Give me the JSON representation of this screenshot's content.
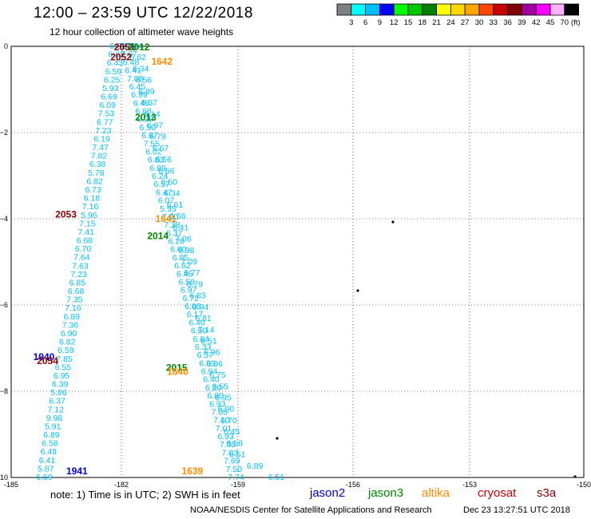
{
  "header": {
    "title": "12:00 – 23:59 UTC 12/22/2018",
    "subtitle": "12 hour collection of altimeter wave heights"
  },
  "color_scale": {
    "labels": [
      "3",
      "6",
      "9",
      "12",
      "15",
      "18",
      "21",
      "24",
      "27",
      "30",
      "33",
      "36",
      "39",
      "42",
      "45",
      "70"
    ],
    "unit": "(ft)",
    "colors": [
      "#7f7f7f",
      "#00ffff",
      "#00bfff",
      "#0000ff",
      "#00ff00",
      "#00c800",
      "#008000",
      "#ffff00",
      "#ffd700",
      "#ffa500",
      "#ff4500",
      "#c80000",
      "#800000",
      "#a000a0",
      "#ff00ff",
      "#ffb0ff",
      "#000000"
    ]
  },
  "legend": {
    "note": "note:  1) Time is in UTC;  2) SWH is in feet",
    "satellites": [
      {
        "name": "jason2",
        "color": "#0000cc"
      },
      {
        "name": "jason3",
        "color": "#008800"
      },
      {
        "name": "altika",
        "color": "#ff8c00"
      },
      {
        "name": "cryosat",
        "color": "#cc0000"
      },
      {
        "name": "s3a",
        "color": "#8b0000"
      }
    ]
  },
  "footer": {
    "credit": "NOAA/NESDIS Center for Satellite Applications and Research",
    "timestamp": "Dec 23 13:27:51 UTC 2018"
  },
  "chart_data": {
    "type": "scatter",
    "xlim": [
      -185,
      -150
    ],
    "ylim": [
      -10,
      0
    ],
    "x_ticks": [
      -185,
      -182,
      -159,
      -156,
      -153,
      -150
    ],
    "x_tick_labels": [
      "-185",
      "-182",
      "-159",
      "-156",
      "-153",
      "-150"
    ],
    "y_ticks": [
      0,
      -2,
      -4,
      -6,
      -8,
      -10
    ],
    "y_tick_labels": [
      "0",
      "−2",
      "−4",
      "−6",
      "−8",
      "−10"
    ],
    "grid": true,
    "value_color": "#00bfff",
    "tracks": [
      {
        "name": "track-a",
        "x_start": -182.1,
        "y_start": 0.0,
        "x_end": -184.1,
        "y_end": -10.0,
        "values": [
          "6.02",
          "6.63",
          "6.43",
          "6.59",
          "6.25",
          "5.93",
          "6.69",
          "6.09",
          "7.53",
          "6.77",
          "7.23",
          "6.19",
          "7.47",
          "7.82",
          "6.38",
          "5.78",
          "6.82",
          "6.73",
          "6.18",
          "7.16",
          "5.96",
          "7.15",
          "7.41",
          "6.68",
          "6.70",
          "7.64",
          "7.63",
          "7.23",
          "6.85",
          "6.68",
          "7.35",
          "7.16",
          "6.89",
          "7.36",
          "6.90",
          "6.82",
          "6.59",
          "7.85",
          "6.55",
          "6.95",
          "6.39",
          "5.86",
          "6.37",
          "7.12",
          "9.98",
          "5.91",
          "6.89",
          "6.58",
          "6.49",
          "6.41",
          "5.87",
          "6.69"
        ]
      },
      {
        "name": "track-b",
        "x_start": -180.9,
        "y_start": 0.0,
        "x_end": -159.4,
        "y_end": -10.0,
        "values": [
          "7.05",
          "7.07",
          "6.48",
          "6.41",
          "7.08",
          "6.45",
          "6.99",
          "6.49",
          "6.68",
          "6.29",
          "6.50",
          "6.67",
          "7.55",
          "6.02",
          "6.83",
          "6.89",
          "6.24",
          "6.57",
          "6.47",
          "6.07",
          "5.95",
          "7.00",
          "7.38",
          "6.37",
          "6.28",
          "6.60",
          "6.85",
          "6.62",
          "6.45",
          "6.58",
          "6.97",
          "6.72",
          "6.06",
          "6.17",
          "6.40",
          "6.50",
          "6.84",
          "6.33",
          "6.57",
          "6.39",
          "6.94",
          "6.40",
          "6.20",
          "6.80",
          "6.93",
          "7.05",
          "7.10",
          "7.01",
          "6.93",
          "7.65",
          "7.03",
          "7.69",
          "7.50",
          "7.74"
        ]
      },
      {
        "name": "track-c",
        "x_start": -179.3,
        "y_start": 0.0,
        "x_end": -158.0,
        "y_end": -10.0,
        "values": [
          "7.14",
          "6.62",
          "6.34",
          "6.56",
          "6.89",
          "6.37",
          "6.14",
          "6.97",
          "6.79",
          "6.67",
          "6.56",
          "6.66",
          "6.50",
          "6.34",
          "6.61",
          "6.66",
          "6.41",
          "7.06",
          "6.98",
          "7.09",
          "6.77",
          "6.79",
          "6.83",
          "6.94",
          "6.81",
          "7.14",
          "6.51",
          "6.96",
          "6.96",
          "6.75",
          "6.55",
          "6.95",
          "6.90",
          "6.70",
          "6.45",
          "6.58",
          "6.51",
          "6.89",
          "6.51"
        ]
      }
    ],
    "time_labels": [
      {
        "text": "2051",
        "x": -182.2,
        "y": -0.02,
        "color": "#8b0000"
      },
      {
        "text": "2052",
        "x": -182.3,
        "y": -0.25,
        "color": "#8b0000"
      },
      {
        "text": "2012",
        "x": -180.6,
        "y": -0.02,
        "color": "#008800"
      },
      {
        "text": "1642",
        "x": -176.1,
        "y": -0.35,
        "color": "#ff8c00"
      },
      {
        "text": "2013",
        "x": -179.3,
        "y": -1.65,
        "color": "#008800"
      },
      {
        "text": "2053",
        "x": -183.8,
        "y": -3.9,
        "color": "#8b0000"
      },
      {
        "text": "1641",
        "x": -175.3,
        "y": -4.0,
        "color": "#ff8c00"
      },
      {
        "text": "2014",
        "x": -176.9,
        "y": -4.4,
        "color": "#008800"
      },
      {
        "text": "1940",
        "x": -184.4,
        "y": -7.2,
        "color": "#0000cc"
      },
      {
        "text": "2054",
        "x": -184.3,
        "y": -7.3,
        "color": "#8b0000"
      },
      {
        "text": "2015",
        "x": -173.2,
        "y": -7.45,
        "color": "#008800"
      },
      {
        "text": "1640",
        "x": -173.0,
        "y": -7.55,
        "color": "#ff8c00"
      },
      {
        "text": "1639",
        "x": -170.1,
        "y": -9.85,
        "color": "#ff8c00"
      },
      {
        "text": "1941",
        "x": -183.5,
        "y": -9.85,
        "color": "#0000cc"
      }
    ]
  }
}
